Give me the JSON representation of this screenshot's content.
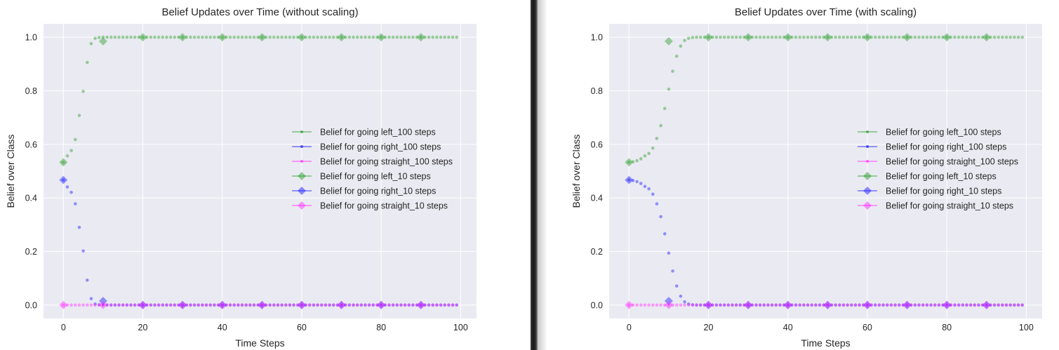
{
  "chart_data": [
    {
      "type": "line",
      "title": "Belief Updates over Time (without scaling)",
      "xlabel": "Time Steps",
      "ylabel": "Belief over Class",
      "xlim": [
        -5,
        104
      ],
      "ylim": [
        -0.05,
        1.05
      ],
      "xticks": [
        0,
        20,
        40,
        60,
        80,
        100
      ],
      "yticks": [
        0.0,
        0.2,
        0.4,
        0.6,
        0.8,
        1.0
      ],
      "grid": true,
      "legend_position": "center-right",
      "legend": [
        "Belief for going left_100 steps",
        "Belief for going right_100 steps",
        "Belief for going straight_100 steps",
        "Belief for going left_10 steps",
        "Belief for going right_10 steps",
        "Belief for going straight_10 steps"
      ],
      "colors": {
        "left": "#2ca02c",
        "right": "#1f1fff",
        "straight": "#ff2fff"
      },
      "series": [
        {
          "name": "Belief for going left_100 steps",
          "x_start": 0,
          "x_step": 1,
          "values": [
            0.533,
            0.557,
            0.577,
            0.618,
            0.708,
            0.798,
            0.906,
            0.976,
            0.996,
            0.999,
            1.0,
            1.0,
            1.0,
            1.0,
            1.0,
            1.0,
            1.0,
            1.0,
            1.0,
            1.0,
            1.0,
            1.0,
            1.0,
            1.0,
            1.0,
            1.0,
            1.0,
            1.0,
            1.0,
            1.0,
            1.0,
            1.0,
            1.0,
            1.0,
            1.0,
            1.0,
            1.0,
            1.0,
            1.0,
            1.0,
            1.0,
            1.0,
            1.0,
            1.0,
            1.0,
            1.0,
            1.0,
            1.0,
            1.0,
            1.0,
            1.0,
            1.0,
            1.0,
            1.0,
            1.0,
            1.0,
            1.0,
            1.0,
            1.0,
            1.0,
            1.0,
            1.0,
            1.0,
            1.0,
            1.0,
            1.0,
            1.0,
            1.0,
            1.0,
            1.0,
            1.0,
            1.0,
            1.0,
            1.0,
            1.0,
            1.0,
            1.0,
            1.0,
            1.0,
            1.0,
            1.0,
            1.0,
            1.0,
            1.0,
            1.0,
            1.0,
            1.0,
            1.0,
            1.0,
            1.0,
            1.0,
            1.0,
            1.0,
            1.0,
            1.0,
            1.0,
            1.0,
            1.0,
            1.0,
            1.0
          ]
        },
        {
          "name": "Belief for going right_100 steps",
          "x_start": 0,
          "x_step": 1,
          "values": [
            0.467,
            0.441,
            0.421,
            0.378,
            0.29,
            0.202,
            0.093,
            0.024,
            0.004,
            0.001,
            0.0,
            0.0,
            0.0,
            0.0,
            0.0,
            0.0,
            0.0,
            0.0,
            0.0,
            0.0,
            0.0,
            0.0,
            0.0,
            0.0,
            0.0,
            0.0,
            0.0,
            0.0,
            0.0,
            0.0,
            0.0,
            0.0,
            0.0,
            0.0,
            0.0,
            0.0,
            0.0,
            0.0,
            0.0,
            0.0,
            0.0,
            0.0,
            0.0,
            0.0,
            0.0,
            0.0,
            0.0,
            0.0,
            0.0,
            0.0,
            0.0,
            0.0,
            0.0,
            0.0,
            0.0,
            0.0,
            0.0,
            0.0,
            0.0,
            0.0,
            0.0,
            0.0,
            0.0,
            0.0,
            0.0,
            0.0,
            0.0,
            0.0,
            0.0,
            0.0,
            0.0,
            0.0,
            0.0,
            0.0,
            0.0,
            0.0,
            0.0,
            0.0,
            0.0,
            0.0,
            0.0,
            0.0,
            0.0,
            0.0,
            0.0,
            0.0,
            0.0,
            0.0,
            0.0,
            0.0,
            0.0,
            0.0,
            0.0,
            0.0,
            0.0,
            0.0,
            0.0,
            0.0,
            0.0,
            0.0
          ]
        },
        {
          "name": "Belief for going straight_100 steps",
          "x_start": 0,
          "x_step": 1,
          "values": [
            0.0,
            0.0,
            0.0,
            0.0,
            0.0,
            0.0,
            0.0,
            0.0,
            0.0,
            0.0,
            0.0,
            0.0,
            0.0,
            0.0,
            0.0,
            0.0,
            0.0,
            0.0,
            0.0,
            0.0,
            0.0,
            0.0,
            0.0,
            0.0,
            0.0,
            0.0,
            0.0,
            0.0,
            0.0,
            0.0,
            0.0,
            0.0,
            0.0,
            0.0,
            0.0,
            0.0,
            0.0,
            0.0,
            0.0,
            0.0,
            0.0,
            0.0,
            0.0,
            0.0,
            0.0,
            0.0,
            0.0,
            0.0,
            0.0,
            0.0,
            0.0,
            0.0,
            0.0,
            0.0,
            0.0,
            0.0,
            0.0,
            0.0,
            0.0,
            0.0,
            0.0,
            0.0,
            0.0,
            0.0,
            0.0,
            0.0,
            0.0,
            0.0,
            0.0,
            0.0,
            0.0,
            0.0,
            0.0,
            0.0,
            0.0,
            0.0,
            0.0,
            0.0,
            0.0,
            0.0,
            0.0,
            0.0,
            0.0,
            0.0,
            0.0,
            0.0,
            0.0,
            0.0,
            0.0,
            0.0,
            0.0,
            0.0,
            0.0,
            0.0,
            0.0,
            0.0,
            0.0,
            0.0,
            0.0,
            0.0
          ]
        },
        {
          "name": "Belief for going left_10 steps",
          "x_start": 0,
          "x_step": 10,
          "values": [
            0.533,
            0.985,
            1.0,
            1.0,
            1.0,
            1.0,
            1.0,
            1.0,
            1.0,
            1.0
          ]
        },
        {
          "name": "Belief for going right_10 steps",
          "x_start": 0,
          "x_step": 10,
          "values": [
            0.467,
            0.015,
            0.0,
            0.0,
            0.0,
            0.0,
            0.0,
            0.0,
            0.0,
            0.0
          ]
        },
        {
          "name": "Belief for going straight_10 steps",
          "x_start": 0,
          "x_step": 10,
          "values": [
            0.0,
            0.0,
            0.0,
            0.0,
            0.0,
            0.0,
            0.0,
            0.0,
            0.0,
            0.0
          ]
        }
      ]
    },
    {
      "type": "line",
      "title": "Belief Updates over Time (with scaling)",
      "xlabel": "Time Steps",
      "ylabel": "Belief over Class",
      "xlim": [
        -5,
        104
      ],
      "ylim": [
        -0.05,
        1.05
      ],
      "xticks": [
        0,
        20,
        40,
        60,
        80,
        100
      ],
      "yticks": [
        0.0,
        0.2,
        0.4,
        0.6,
        0.8,
        1.0
      ],
      "grid": true,
      "legend_position": "center-right",
      "legend": [
        "Belief for going left_100 steps",
        "Belief for going right_100 steps",
        "Belief for going straight_100 steps",
        "Belief for going left_10 steps",
        "Belief for going right_10 steps",
        "Belief for going straight_10 steps"
      ],
      "colors": {
        "left": "#2ca02c",
        "right": "#1f1fff",
        "straight": "#ff2fff"
      },
      "series": [
        {
          "name": "Belief for going left_100 steps",
          "x_start": 0,
          "x_step": 1,
          "values": [
            0.533,
            0.535,
            0.539,
            0.546,
            0.557,
            0.566,
            0.586,
            0.622,
            0.67,
            0.734,
            0.806,
            0.873,
            0.929,
            0.967,
            0.988,
            0.996,
            0.999,
            1.0,
            1.0,
            1.0,
            1.0,
            1.0,
            1.0,
            1.0,
            1.0,
            1.0,
            1.0,
            1.0,
            1.0,
            1.0,
            1.0,
            1.0,
            1.0,
            1.0,
            1.0,
            1.0,
            1.0,
            1.0,
            1.0,
            1.0,
            1.0,
            1.0,
            1.0,
            1.0,
            1.0,
            1.0,
            1.0,
            1.0,
            1.0,
            1.0,
            1.0,
            1.0,
            1.0,
            1.0,
            1.0,
            1.0,
            1.0,
            1.0,
            1.0,
            1.0,
            1.0,
            1.0,
            1.0,
            1.0,
            1.0,
            1.0,
            1.0,
            1.0,
            1.0,
            1.0,
            1.0,
            1.0,
            1.0,
            1.0,
            1.0,
            1.0,
            1.0,
            1.0,
            1.0,
            1.0,
            1.0,
            1.0,
            1.0,
            1.0,
            1.0,
            1.0,
            1.0,
            1.0,
            1.0,
            1.0,
            1.0,
            1.0,
            1.0,
            1.0,
            1.0,
            1.0,
            1.0,
            1.0,
            1.0,
            1.0
          ]
        },
        {
          "name": "Belief for going right_100 steps",
          "x_start": 0,
          "x_step": 1,
          "values": [
            0.467,
            0.465,
            0.461,
            0.454,
            0.443,
            0.434,
            0.414,
            0.378,
            0.33,
            0.266,
            0.194,
            0.127,
            0.071,
            0.033,
            0.012,
            0.004,
            0.001,
            0.0,
            0.0,
            0.0,
            0.0,
            0.0,
            0.0,
            0.0,
            0.0,
            0.0,
            0.0,
            0.0,
            0.0,
            0.0,
            0.0,
            0.0,
            0.0,
            0.0,
            0.0,
            0.0,
            0.0,
            0.0,
            0.0,
            0.0,
            0.0,
            0.0,
            0.0,
            0.0,
            0.0,
            0.0,
            0.0,
            0.0,
            0.0,
            0.0,
            0.0,
            0.0,
            0.0,
            0.0,
            0.0,
            0.0,
            0.0,
            0.0,
            0.0,
            0.0,
            0.0,
            0.0,
            0.0,
            0.0,
            0.0,
            0.0,
            0.0,
            0.0,
            0.0,
            0.0,
            0.0,
            0.0,
            0.0,
            0.0,
            0.0,
            0.0,
            0.0,
            0.0,
            0.0,
            0.0,
            0.0,
            0.0,
            0.0,
            0.0,
            0.0,
            0.0,
            0.0,
            0.0,
            0.0,
            0.0,
            0.0,
            0.0,
            0.0,
            0.0,
            0.0,
            0.0,
            0.0,
            0.0,
            0.0,
            0.0
          ]
        },
        {
          "name": "Belief for going straight_100 steps",
          "x_start": 0,
          "x_step": 1,
          "values": [
            0.0,
            0.0,
            0.0,
            0.0,
            0.0,
            0.0,
            0.0,
            0.0,
            0.0,
            0.0,
            0.0,
            0.0,
            0.0,
            0.0,
            0.0,
            0.0,
            0.0,
            0.0,
            0.0,
            0.0,
            0.0,
            0.0,
            0.0,
            0.0,
            0.0,
            0.0,
            0.0,
            0.0,
            0.0,
            0.0,
            0.0,
            0.0,
            0.0,
            0.0,
            0.0,
            0.0,
            0.0,
            0.0,
            0.0,
            0.0,
            0.0,
            0.0,
            0.0,
            0.0,
            0.0,
            0.0,
            0.0,
            0.0,
            0.0,
            0.0,
            0.0,
            0.0,
            0.0,
            0.0,
            0.0,
            0.0,
            0.0,
            0.0,
            0.0,
            0.0,
            0.0,
            0.0,
            0.0,
            0.0,
            0.0,
            0.0,
            0.0,
            0.0,
            0.0,
            0.0,
            0.0,
            0.0,
            0.0,
            0.0,
            0.0,
            0.0,
            0.0,
            0.0,
            0.0,
            0.0,
            0.0,
            0.0,
            0.0,
            0.0,
            0.0,
            0.0,
            0.0,
            0.0,
            0.0,
            0.0,
            0.0,
            0.0,
            0.0,
            0.0,
            0.0,
            0.0,
            0.0,
            0.0,
            0.0,
            0.0
          ]
        },
        {
          "name": "Belief for going left_10 steps",
          "x_start": 0,
          "x_step": 10,
          "values": [
            0.533,
            0.985,
            1.0,
            1.0,
            1.0,
            1.0,
            1.0,
            1.0,
            1.0,
            1.0
          ]
        },
        {
          "name": "Belief for going right_10 steps",
          "x_start": 0,
          "x_step": 10,
          "values": [
            0.467,
            0.015,
            0.0,
            0.0,
            0.0,
            0.0,
            0.0,
            0.0,
            0.0,
            0.0
          ]
        },
        {
          "name": "Belief for going straight_10 steps",
          "x_start": 0,
          "x_step": 10,
          "values": [
            0.0,
            0.0,
            0.0,
            0.0,
            0.0,
            0.0,
            0.0,
            0.0,
            0.0,
            0.0
          ]
        }
      ]
    }
  ]
}
